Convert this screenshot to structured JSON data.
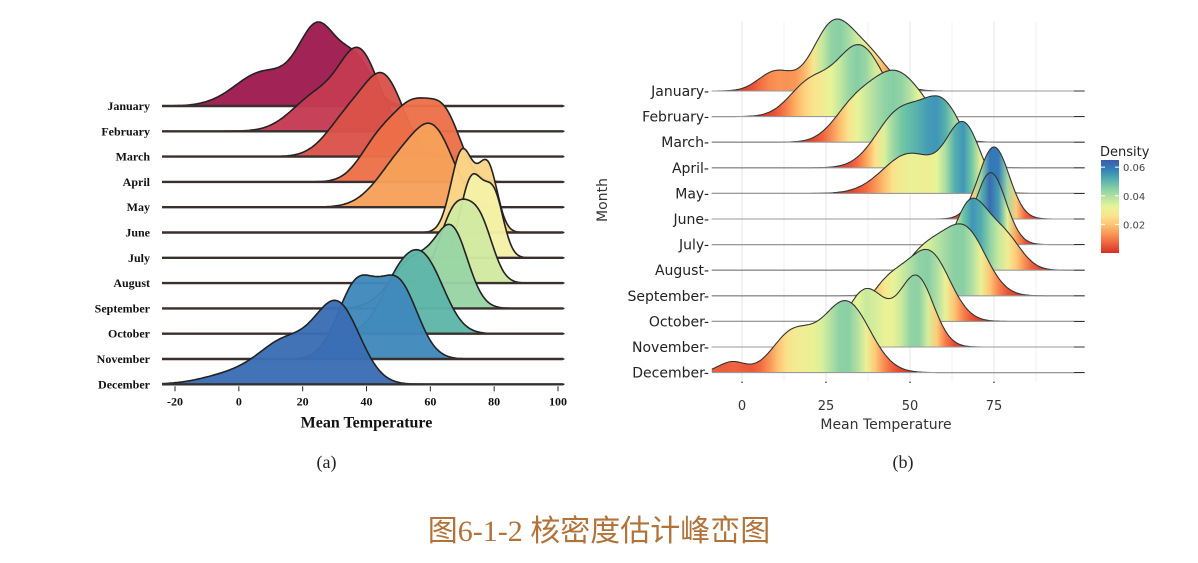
{
  "months": [
    "January",
    "February",
    "March",
    "April",
    "May",
    "June",
    "July",
    "August",
    "September",
    "October",
    "November",
    "December"
  ],
  "colors": {
    "panel_a": [
      "#9e1a4f",
      "#c53a52",
      "#db524a",
      "#ec6f48",
      "#f6a05a",
      "#fbd588",
      "#f4f0a7",
      "#d0e9a0",
      "#98d4a4",
      "#5fb5a9",
      "#3f89bc",
      "#3a6db4"
    ],
    "caption": "#b1733a"
  },
  "caption": "图6-1-2 核密度估计峰峦图",
  "chart_data": [
    {
      "type": "ridgeline",
      "panel_label": "(a)",
      "xlabel": "Mean Temperature",
      "xlim": [
        -20,
        100
      ],
      "xticks": [
        "-20",
        "0",
        "20",
        "40",
        "60",
        "80",
        "100"
      ],
      "grid": false,
      "legend": "none",
      "series": [
        {
          "name": "January",
          "peaks": [
            [
              8,
              9,
              0.45
            ],
            [
              25,
              6,
              1.0
            ],
            [
              37,
              5,
              0.55
            ]
          ]
        },
        {
          "name": "February",
          "peaks": [
            [
              25,
              8,
              0.5
            ],
            [
              38,
              6,
              1.0
            ]
          ]
        },
        {
          "name": "March",
          "peaks": [
            [
              35,
              7,
              0.6
            ],
            [
              46,
              6,
              1.0
            ]
          ]
        },
        {
          "name": "April",
          "peaks": [
            [
              44,
              6,
              0.5
            ],
            [
              55,
              6,
              0.85
            ],
            [
              65,
              5,
              0.7
            ]
          ]
        },
        {
          "name": "May",
          "peaks": [
            [
              52,
              8,
              0.9
            ],
            [
              62,
              6,
              1.0
            ]
          ]
        },
        {
          "name": "June",
          "peaks": [
            [
              70,
              3.5,
              1.0
            ],
            [
              78,
              3,
              0.8
            ]
          ]
        },
        {
          "name": "July",
          "peaks": [
            [
              73,
              3.5,
              1.0
            ],
            [
              80,
              3,
              0.75
            ]
          ]
        },
        {
          "name": "August",
          "peaks": [
            [
              68,
              5,
              1.0
            ],
            [
              76,
              4,
              0.65
            ]
          ]
        },
        {
          "name": "September",
          "peaks": [
            [
              55,
              7,
              0.7
            ],
            [
              67,
              5,
              1.0
            ]
          ]
        },
        {
          "name": "October",
          "peaks": [
            [
              50,
              6,
              0.8
            ],
            [
              59,
              6,
              1.0
            ]
          ]
        },
        {
          "name": "November",
          "peaks": [
            [
              37,
              6,
              0.8
            ],
            [
              50,
              6,
              0.8
            ]
          ]
        },
        {
          "name": "December",
          "peaks": [
            [
              0,
              10,
              0.15
            ],
            [
              15,
              8,
              0.5
            ],
            [
              31,
              7,
              1.0
            ]
          ]
        }
      ]
    },
    {
      "type": "ridgeline",
      "panel_label": "(b)",
      "xlabel": "Mean Temperature",
      "ylabel": "Month",
      "xlim": [
        -5,
        100
      ],
      "xticks": [
        "0",
        "25",
        "50",
        "75"
      ],
      "grid": true,
      "legend": "right",
      "legend_title": "Density",
      "legend_ticks": [
        "0.06",
        "0.04",
        "0.02"
      ],
      "density_range": [
        0.0,
        0.065
      ],
      "series": [
        {
          "name": "January",
          "peaks": [
            [
              10,
              5,
              0.3
            ],
            [
              27,
              6,
              1.0
            ],
            [
              38,
              6,
              0.5
            ]
          ]
        },
        {
          "name": "February",
          "peaks": [
            [
              20,
              6,
              0.45
            ],
            [
              35,
              7,
              1.0
            ]
          ]
        },
        {
          "name": "March",
          "peaks": [
            [
              33,
              6,
              0.5
            ],
            [
              45,
              7,
              1.0
            ],
            [
              55,
              6,
              0.3
            ]
          ]
        },
        {
          "name": "April",
          "peaks": [
            [
              47,
              7,
              0.7
            ],
            [
              60,
              6,
              0.75
            ]
          ]
        },
        {
          "name": "May",
          "peaks": [
            [
              50,
              8,
              0.6
            ],
            [
              66,
              5,
              1.0
            ]
          ]
        },
        {
          "name": "June",
          "peaks": [
            [
              75,
              4.5,
              1.0
            ]
          ]
        },
        {
          "name": "July",
          "peaks": [
            [
              74,
              4.5,
              1.0
            ]
          ]
        },
        {
          "name": "August",
          "peaks": [
            [
              68,
              5,
              1.0
            ],
            [
              78,
              5,
              0.5
            ]
          ]
        },
        {
          "name": "September",
          "peaks": [
            [
              55,
              7,
              0.8
            ],
            [
              67,
              6,
              1.0
            ]
          ]
        },
        {
          "name": "October",
          "peaks": [
            [
              44,
              6,
              0.6
            ],
            [
              56,
              6,
              1.0
            ]
          ]
        },
        {
          "name": "November",
          "peaks": [
            [
              37,
              6,
              0.75
            ],
            [
              52,
              5,
              0.9
            ]
          ]
        },
        {
          "name": "December",
          "peaks": [
            [
              -3,
              4,
              0.15
            ],
            [
              15,
              6,
              0.55
            ],
            [
              31,
              7,
              1.0
            ]
          ]
        }
      ]
    }
  ]
}
